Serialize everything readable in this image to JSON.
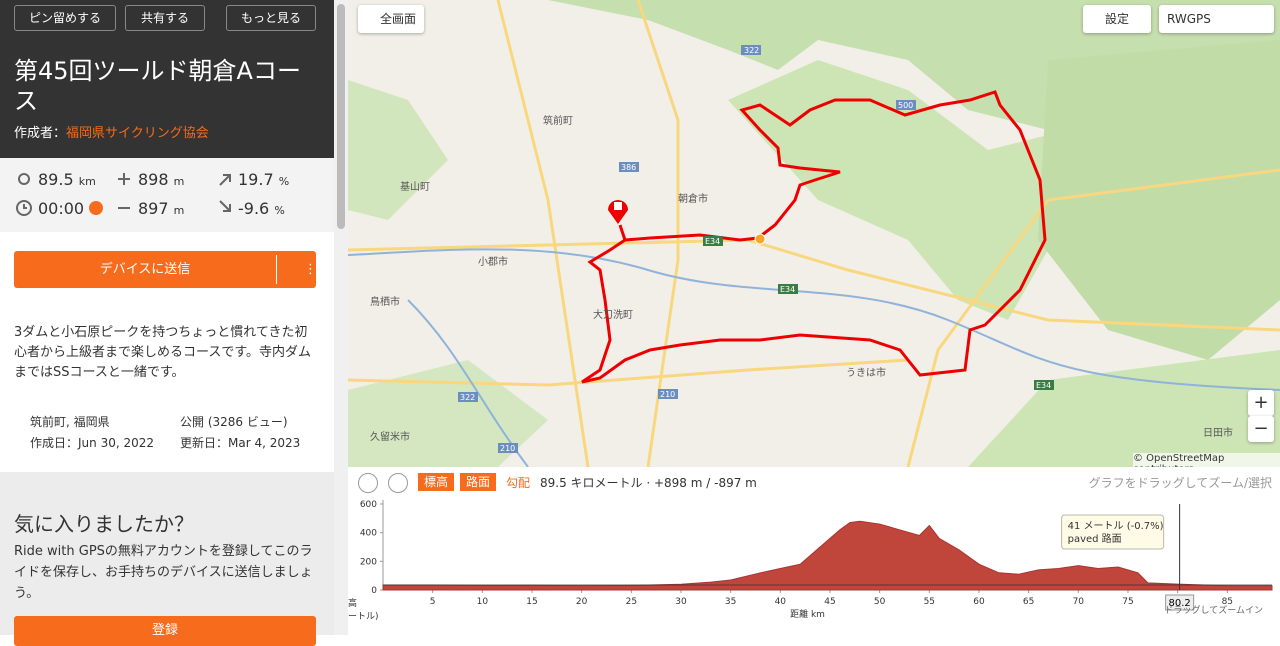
{
  "header": {
    "buttons": [
      "ピン留めする",
      "共有する",
      "もっと見る"
    ],
    "title": "第45回ツールド朝倉Aコース",
    "author_label": "作成者：",
    "author": "福岡県サイクリング協会"
  },
  "stats": {
    "distance": "89.5",
    "distance_unit": "km",
    "gain": "898",
    "gain_unit": "m",
    "max_grade": "19.7",
    "max_grade_unit": "%",
    "time": "00:00",
    "loss": "897",
    "loss_unit": "m",
    "min_grade": "-9.6",
    "min_grade_unit": "%"
  },
  "send_button": "デバイスに送信",
  "description": "3ダムと小石原ピークを持つちょっと慣れてきた初心者から上級者まで楽しめるコースです。寺内ダムまではSSコースと一緒です。",
  "meta": {
    "location": "筑前町, 福岡県",
    "visibility": "公開 (3286 ビュー)",
    "created": "作成日：Jun 30, 2022",
    "updated": "更新日：Mar 4, 2023"
  },
  "promo": {
    "title": "気に入りましたか？",
    "text": "Ride with GPSの無料アカウントを登録してこのライドを保存し、お手持ちのデバイスに送信しましょう。",
    "button": "登録"
  },
  "map": {
    "fullscreen": "全画面",
    "settings": "設定",
    "layer": "RWGPS",
    "zoom_in": "+",
    "zoom_out": "−",
    "attribution": "© OpenStreetMap contributors",
    "labels": [
      "筑前町",
      "朝倉市",
      "小郡市",
      "鳥栖市",
      "大刀洗町",
      "うきは市",
      "久留米市",
      "日田市",
      "基山町"
    ],
    "roads": [
      "322",
      "E34",
      "E34",
      "E34",
      "210",
      "210",
      "500",
      "386",
      "322"
    ]
  },
  "elevation": {
    "tabs": [
      "標高",
      "路面"
    ],
    "grade": "勾配",
    "summary": "89.5 キロメートル · +898 m / -897 m",
    "hint": "グラフをドラッグしてズーム/選択",
    "y_label": "高",
    "y_unit": "ートル)",
    "x_label": "距離 km",
    "tooltip": [
      "41 メートル (-0.7%)",
      "paved 路面"
    ],
    "cursor": 80.2,
    "drag_hint": "ドラッグしてズームイン",
    "chart_data": {
      "type": "area",
      "color": "#c0463c",
      "x": [
        0,
        5,
        10,
        15,
        20,
        25,
        30,
        33,
        35,
        38,
        40,
        42,
        44,
        46,
        47,
        48,
        50,
        52,
        54,
        55,
        56,
        58,
        60,
        62,
        64,
        66,
        68,
        70,
        72,
        74,
        76,
        77,
        80,
        85,
        89.5
      ],
      "values": [
        35,
        35,
        32,
        33,
        30,
        32,
        40,
        55,
        70,
        120,
        150,
        180,
        300,
        420,
        470,
        480,
        460,
        420,
        380,
        450,
        360,
        280,
        180,
        120,
        110,
        140,
        150,
        170,
        150,
        160,
        120,
        50,
        41,
        30,
        30
      ],
      "xlim": [
        0,
        89.5
      ],
      "ylim": [
        0,
        600
      ],
      "xticks": [
        5,
        10,
        15,
        20,
        25,
        30,
        35,
        40,
        45,
        50,
        55,
        60,
        65,
        70,
        75,
        80,
        85
      ],
      "yticks": [
        0,
        200,
        400,
        600
      ]
    }
  }
}
